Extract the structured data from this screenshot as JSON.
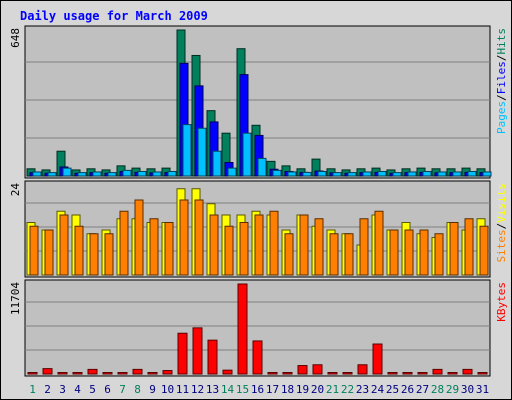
{
  "chart_data": {
    "type": "bar",
    "title": "Daily usage for March 2009",
    "x": [
      "1",
      "2",
      "3",
      "4",
      "5",
      "6",
      "7",
      "8",
      "9",
      "10",
      "11",
      "12",
      "13",
      "14",
      "15",
      "16",
      "17",
      "18",
      "19",
      "20",
      "21",
      "22",
      "23",
      "24",
      "25",
      "26",
      "27",
      "28",
      "29",
      "30",
      "31"
    ],
    "weekend_days": [
      "1",
      "7",
      "8",
      "14",
      "15",
      "21",
      "22",
      "28",
      "29"
    ],
    "colors": {
      "hits": "#00805c",
      "files": "#0000ff",
      "pages": "#00c0ff",
      "visits": "#ffff00",
      "sites": "#ff8000",
      "kbytes": "#ff0000",
      "title": "#0000ff",
      "weekday_label": "#000080",
      "weekend_label": "#00805c",
      "panel_bg": "#c0c0c0",
      "page_bg": "#d7d7d7"
    },
    "panels": [
      {
        "id": "top",
        "max_label": "648",
        "ymax": 648,
        "legend": [
          {
            "text": "Pages",
            "color": "#00c0ff"
          },
          {
            "text": "/",
            "color": "#000000"
          },
          {
            "text": "Files",
            "color": "#0000ff"
          },
          {
            "text": "/",
            "color": "#000000"
          },
          {
            "text": "Hits",
            "color": "#00805c"
          }
        ],
        "series": [
          {
            "key": "hits",
            "values": [
              32,
              27,
              110,
              27,
              32,
              27,
              45,
              35,
              32,
              35,
              648,
              535,
              290,
              190,
              565,
              225,
              65,
              45,
              32,
              75,
              32,
              27,
              32,
              35,
              27,
              32,
              35,
              32,
              32,
              35,
              32
            ]
          },
          {
            "key": "files",
            "values": [
              15,
              12,
              40,
              12,
              15,
              12,
              20,
              16,
              14,
              15,
              500,
              400,
              240,
              60,
              450,
              180,
              30,
              20,
              16,
              22,
              14,
              12,
              15,
              16,
              12,
              15,
              16,
              14,
              15,
              16,
              15
            ]
          },
          {
            "key": "pages",
            "values": [
              18,
              15,
              35,
              15,
              18,
              15,
              25,
              20,
              18,
              20,
              228,
              212,
              110,
              35,
              190,
              78,
              25,
              18,
              16,
              20,
              15,
              15,
              18,
              20,
              15,
              18,
              20,
              18,
              18,
              20,
              18
            ]
          }
        ]
      },
      {
        "id": "middle",
        "max_label": "24",
        "ymax": 24,
        "legend": [
          {
            "text": "Sites",
            "color": "#ff8000"
          },
          {
            "text": "/",
            "color": "#000000"
          },
          {
            "text": "Visits",
            "color": "#ffff00"
          }
        ],
        "series": [
          {
            "key": "visits",
            "values": [
              14,
              12,
              17,
              16,
              11,
              12,
              15,
              15,
              14,
              14,
              23,
              23,
              19,
              16,
              16,
              17,
              16,
              12,
              16,
              13,
              12,
              11,
              8,
              16,
              12,
              14,
              11,
              10,
              14,
              12,
              15
            ]
          },
          {
            "key": "sites",
            "values": [
              13,
              12,
              16,
              13,
              11,
              11,
              17,
              20,
              15,
              14,
              20,
              20,
              16,
              13,
              14,
              16,
              17,
              11,
              16,
              15,
              11,
              11,
              15,
              17,
              12,
              12,
              12,
              11,
              14,
              15,
              13
            ]
          }
        ]
      },
      {
        "id": "bottom",
        "max_label": "11704",
        "ymax": 11704,
        "legend": [
          {
            "text": "KBytes",
            "color": "#ff0000"
          }
        ],
        "series": [
          {
            "key": "kbytes",
            "values": [
              80,
              700,
              150,
              80,
              600,
              80,
              80,
              600,
              80,
              450,
              5300,
              6000,
              4400,
              500,
              11704,
              4300,
              80,
              80,
              1100,
              1200,
              80,
              80,
              1200,
              3900,
              80,
              80,
              80,
              600,
              80,
              600,
              80
            ]
          }
        ]
      }
    ]
  }
}
